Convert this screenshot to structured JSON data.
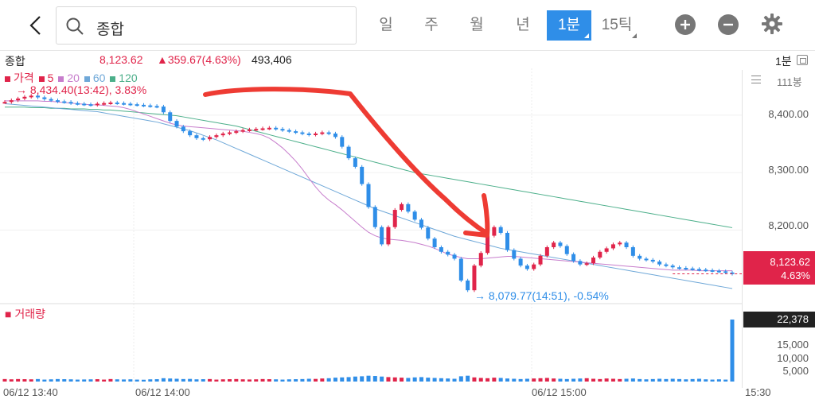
{
  "search": {
    "value": "종합"
  },
  "tabs": [
    {
      "label": "일",
      "active": false
    },
    {
      "label": "주",
      "active": false
    },
    {
      "label": "월",
      "active": false
    },
    {
      "label": "년",
      "active": false
    },
    {
      "label": "1분",
      "active": true
    },
    {
      "label": "15틱",
      "active": false
    }
  ],
  "icons": {
    "back": "chevron-left-icon",
    "search": "search-icon",
    "zoom_in": "plus-circle-icon",
    "zoom_out": "minus-circle-icon",
    "settings": "gear-icon"
  },
  "info": {
    "name": "종합",
    "price": "8,123.62",
    "change": "▲359.67(4.63%)",
    "volume": "493,406",
    "period": "1분"
  },
  "legend": {
    "items": [
      {
        "label": "가격",
        "color": "#e0244a"
      },
      {
        "label": "5",
        "color": "#e0244a"
      },
      {
        "label": "20",
        "color": "#c77dcc"
      },
      {
        "label": "60",
        "color": "#6fa8d8"
      },
      {
        "label": "120",
        "color": "#4caf8a"
      }
    ]
  },
  "annotations": {
    "max": "→ 8,434.40(13:42), 3.83%",
    "min": "→ 8,079.77(14:51), -0.54%",
    "candle_count": "111봉"
  },
  "price_axis": {
    "ticks": [
      "8,400.00",
      "8,300.00",
      "8,200.00"
    ]
  },
  "current": {
    "price": "8,123.62",
    "change": "4.63%"
  },
  "volume_panel": {
    "title": "거래량",
    "current": "22,378",
    "ticks": [
      "15,000",
      "10,000",
      "5,000"
    ]
  },
  "x_axis": {
    "labels": [
      "06/12 13:40",
      "06/12 14:00",
      "06/12 15:00",
      "15:30"
    ]
  },
  "colors": {
    "up": "#e0244a",
    "down": "#2f8ee8",
    "accent": "#2f8ee8"
  },
  "chart_data": {
    "type": "candlestick",
    "price": [
      8423,
      8426,
      8429,
      8432,
      8434,
      8431,
      8428,
      8426,
      8424,
      8423,
      8421,
      8420,
      8419,
      8418,
      8420,
      8421,
      8422,
      8421,
      8420,
      8419,
      8418,
      8417,
      8416,
      8415,
      8405,
      8390,
      8380,
      8372,
      8365,
      8360,
      8358,
      8362,
      8365,
      8368,
      8370,
      8372,
      8374,
      8375,
      8376,
      8377,
      8378,
      8376,
      8374,
      8372,
      8370,
      8368,
      8366,
      8368,
      8370,
      8368,
      8362,
      8345,
      8325,
      8310,
      8280,
      8240,
      8205,
      8175,
      8205,
      8235,
      8245,
      8232,
      8218,
      8204,
      8185,
      8170,
      8162,
      8157,
      8150,
      8112,
      8095,
      8138,
      8160,
      8190,
      8205,
      8195,
      8165,
      8150,
      8138,
      8132,
      8140,
      8155,
      8170,
      8178,
      8172,
      8158,
      8146,
      8140,
      8142,
      8152,
      8162,
      8168,
      8175,
      8178,
      8170,
      8155,
      8150,
      8148,
      8145,
      8140,
      8138,
      8135,
      8134,
      8133,
      8132,
      8131,
      8130,
      8129,
      8128,
      8126,
      8123.62
    ],
    "ma20": [
      8425,
      8425,
      8425,
      8425,
      8425,
      8425,
      8424,
      8424,
      8423,
      8422,
      8421,
      8420,
      8419,
      8418,
      8418,
      8417,
      8416,
      8415,
      8413,
      8410,
      8406,
      8402,
      8398,
      8394,
      8390,
      8386,
      8383,
      8381,
      8380,
      8379,
      8378,
      8377,
      8376,
      8375,
      8374,
      8373,
      8372,
      8370,
      8368,
      8365,
      8360,
      8352,
      8343,
      8332,
      8320,
      8306,
      8290,
      8275,
      8262,
      8252,
      8244,
      8235,
      8225,
      8215,
      8205,
      8196,
      8190,
      8186,
      8184,
      8183,
      8182,
      8180,
      8178,
      8175,
      8172,
      8168,
      8163,
      8158,
      8155,
      8152,
      8150,
      8150,
      8150,
      8151,
      8152,
      8153,
      8154,
      8154,
      8153,
      8152,
      8151,
      8150,
      8149,
      8148,
      8147,
      8146,
      8145,
      8144,
      8143,
      8142,
      8141,
      8140,
      8139,
      8138,
      8137,
      8136,
      8135,
      8134,
      8133,
      8132,
      8131,
      8130,
      8130,
      8130,
      8130,
      8129,
      8129,
      8129,
      8129,
      8129,
      8129
    ],
    "ma60": [
      8420,
      8419,
      8418,
      8417,
      8416,
      8415,
      8414,
      8413,
      8412,
      8411,
      8410,
      8409,
      8408,
      8407,
      8406,
      8404,
      8402,
      8400,
      8398,
      8396,
      8394,
      8392,
      8390,
      8388,
      8385,
      8382,
      8379,
      8376,
      8373,
      8369,
      8365,
      8361,
      8357,
      8352,
      8347,
      8342,
      8337,
      8332,
      8327,
      8322,
      8317,
      8312,
      8307,
      8302,
      8297,
      8292,
      8287,
      8282,
      8277,
      8272,
      8267,
      8262,
      8257,
      8252,
      8247,
      8242,
      8237,
      8233,
      8229,
      8225,
      8221,
      8217,
      8213,
      8209,
      8205,
      8201,
      8197,
      8193,
      8189,
      8186,
      8183,
      8180,
      8177,
      8174,
      8171,
      8168,
      8166,
      8164,
      8162,
      8160,
      8158,
      8156,
      8154,
      8152,
      8150,
      8148,
      8146,
      8144,
      8142,
      8140,
      8138,
      8136,
      8134,
      8132,
      8130,
      8128,
      8126,
      8124,
      8122,
      8120,
      8118,
      8116,
      8114,
      8112,
      8110,
      8108,
      8106,
      8104,
      8102,
      8100,
      8098
    ],
    "ma120": [
      8414,
      8414,
      8414,
      8414,
      8413,
      8413,
      8413,
      8412,
      8412,
      8412,
      8411,
      8411,
      8411,
      8410,
      8410,
      8409,
      8409,
      8408,
      8407,
      8406,
      8405,
      8404,
      8403,
      8402,
      8401,
      8400,
      8399,
      8397,
      8395,
      8393,
      8391,
      8389,
      8387,
      8385,
      8383,
      8381,
      8378,
      8375,
      8372,
      8369,
      8366,
      8363,
      8360,
      8357,
      8354,
      8351,
      8348,
      8345,
      8342,
      8339,
      8336,
      8333,
      8330,
      8327,
      8324,
      8321,
      8318,
      8315,
      8312,
      8309,
      8306,
      8303,
      8300,
      8298,
      8296,
      8294,
      8292,
      8290,
      8288,
      8286,
      8284,
      8282,
      8280,
      8278,
      8276,
      8274,
      8272,
      8270,
      8268,
      8266,
      8264,
      8262,
      8260,
      8258,
      8256,
      8254,
      8252,
      8250,
      8248,
      8246,
      8244,
      8242,
      8240,
      8238,
      8236,
      8234,
      8232,
      8230,
      8228,
      8226,
      8224,
      8222,
      8220,
      8218,
      8216,
      8214,
      8212,
      8210,
      8208,
      8206,
      8204
    ],
    "volume": [
      900,
      800,
      900,
      850,
      800,
      900,
      700,
      800,
      900,
      850,
      800,
      700,
      750,
      800,
      850,
      700,
      900,
      800,
      750,
      800,
      700,
      650,
      800,
      850,
      1200,
      1100,
      1000,
      900,
      950,
      800,
      850,
      900,
      700,
      800,
      850,
      900,
      800,
      750,
      800,
      900,
      850,
      800,
      700,
      800,
      850,
      900,
      1000,
      950,
      1100,
      1200,
      1400,
      1500,
      1600,
      1800,
      1900,
      2100,
      2000,
      1800,
      1600,
      1500,
      1400,
      1300,
      1500,
      1600,
      1400,
      1300,
      1200,
      1100,
      1000,
      1900,
      2100,
      1500,
      1300,
      1200,
      1400,
      1300,
      1100,
      1000,
      900,
      1000,
      1100,
      1200,
      1300,
      1100,
      1000,
      900,
      1000,
      1100,
      1200,
      1000,
      900,
      1100,
      1000,
      900,
      1000,
      1100,
      900,
      800,
      900,
      1000,
      900,
      1000,
      900,
      800,
      900,
      1000,
      800,
      700,
      800,
      700,
      22378
    ],
    "ylim": [
      8080,
      8440
    ]
  }
}
